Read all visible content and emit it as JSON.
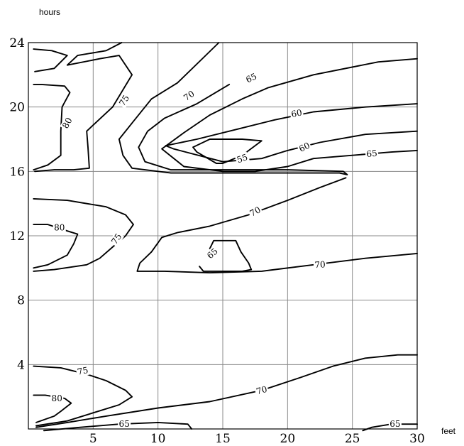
{
  "chart_data": {
    "type": "contour",
    "title": "",
    "xlabel": "feet",
    "ylabel": "hours",
    "xlim": [
      0,
      30
    ],
    "ylim": [
      0,
      24
    ],
    "x_ticks": [
      5,
      10,
      15,
      20,
      25,
      30
    ],
    "y_ticks": [
      4,
      8,
      12,
      16,
      20,
      24
    ],
    "grid": true,
    "contours": [
      {
        "level": "80",
        "points": [
          [
            0.5,
            22.2
          ],
          [
            2.0,
            22.4
          ],
          [
            3.0,
            23.2
          ],
          [
            1.8,
            23.5
          ],
          [
            0.4,
            23.6
          ]
        ]
      },
      {
        "level": "80",
        "points": [
          [
            0.4,
            16.1
          ],
          [
            1.5,
            16.4
          ],
          [
            2.5,
            17.0
          ],
          [
            2.5,
            18.5
          ],
          [
            2.6,
            20.0
          ],
          [
            3.2,
            20.9
          ],
          [
            2.8,
            21.3
          ],
          [
            1.0,
            21.4
          ],
          [
            0.4,
            21.4
          ]
        ]
      },
      {
        "level": "75",
        "points": [
          [
            0.5,
            16.0
          ],
          [
            2.0,
            16.1
          ],
          [
            3.5,
            16.1
          ],
          [
            4.7,
            16.2
          ],
          [
            4.6,
            17.5
          ],
          [
            4.5,
            18.5
          ],
          [
            6.5,
            20.0
          ],
          [
            8.0,
            22.0
          ],
          [
            7.0,
            23.2
          ],
          [
            5.5,
            23.0
          ],
          [
            3.0,
            22.6
          ],
          [
            3.8,
            23.2
          ],
          [
            6.0,
            23.5
          ],
          [
            7.2,
            24.0
          ]
        ]
      },
      {
        "level": "70",
        "points": [
          [
            14.7,
            24.0
          ],
          [
            11.5,
            21.5
          ],
          [
            9.5,
            20.5
          ],
          [
            8.0,
            19.0
          ],
          [
            7.0,
            18.0
          ],
          [
            7.3,
            17.0
          ],
          [
            8.0,
            16.2
          ],
          [
            11.0,
            15.9
          ],
          [
            14.0,
            15.9
          ],
          [
            17.0,
            15.9
          ],
          [
            20.0,
            15.9
          ],
          [
            24.0,
            15.9
          ],
          [
            24.6,
            15.8
          ],
          [
            24.3,
            16.0
          ],
          [
            20.0,
            16.1
          ],
          [
            15.0,
            16.1
          ],
          [
            11.0,
            16.1
          ],
          [
            9.0,
            16.6
          ],
          [
            8.5,
            17.5
          ],
          [
            9.2,
            18.5
          ],
          [
            10.5,
            19.3
          ],
          [
            13.0,
            20.2
          ],
          [
            15.5,
            21.4
          ]
        ]
      },
      {
        "level": "65",
        "points": [
          [
            30.0,
            23.0
          ],
          [
            27.0,
            22.8
          ],
          [
            22.0,
            22.0
          ],
          [
            18.5,
            21.2
          ],
          [
            16.5,
            20.5
          ],
          [
            14.0,
            19.5
          ],
          [
            12.0,
            18.4
          ],
          [
            10.3,
            17.4
          ],
          [
            12.0,
            16.3
          ],
          [
            15.0,
            16.0
          ],
          [
            17.5,
            16.0
          ],
          [
            20.0,
            16.3
          ],
          [
            22.0,
            16.8
          ],
          [
            25.0,
            17.0
          ],
          [
            28.0,
            17.2
          ],
          [
            30.0,
            17.3
          ]
        ]
      },
      {
        "level": "60",
        "points": [
          [
            30.0,
            20.2
          ],
          [
            26.0,
            20.0
          ],
          [
            22.0,
            19.7
          ],
          [
            19.0,
            19.2
          ],
          [
            16.0,
            18.6
          ],
          [
            13.0,
            18.0
          ],
          [
            10.6,
            17.6
          ],
          [
            11.2,
            17.4
          ],
          [
            15.0,
            16.6
          ],
          [
            18.0,
            16.8
          ],
          [
            20.0,
            17.3
          ],
          [
            22.5,
            17.8
          ],
          [
            26.0,
            18.3
          ],
          [
            30.0,
            18.5
          ]
        ]
      },
      {
        "level": "55",
        "points": [
          [
            12.7,
            17.5
          ],
          [
            14.0,
            18.0
          ],
          [
            16.5,
            18.0
          ],
          [
            18.0,
            17.9
          ],
          [
            16.5,
            17.0
          ],
          [
            15.0,
            16.5
          ],
          [
            14.5,
            16.5
          ],
          [
            13.0,
            17.2
          ],
          [
            12.7,
            17.5
          ]
        ]
      },
      {
        "level": "80",
        "points": [
          [
            0.4,
            12.7
          ],
          [
            1.5,
            12.7
          ],
          [
            3.0,
            12.3
          ],
          [
            3.8,
            12.1
          ],
          [
            3.5,
            11.5
          ],
          [
            3.0,
            10.8
          ],
          [
            1.5,
            10.2
          ],
          [
            0.4,
            10.0
          ]
        ]
      },
      {
        "level": "75",
        "points": [
          [
            0.4,
            14.3
          ],
          [
            3.0,
            14.2
          ],
          [
            6.0,
            13.8
          ],
          [
            7.5,
            13.3
          ],
          [
            8.1,
            12.7
          ],
          [
            7.5,
            12.0
          ],
          [
            6.5,
            11.3
          ],
          [
            5.5,
            10.6
          ],
          [
            4.5,
            10.2
          ],
          [
            2.0,
            9.9
          ],
          [
            0.4,
            9.8
          ]
        ]
      },
      {
        "level": "70",
        "points": [
          [
            30.0,
            10.9
          ],
          [
            26.0,
            10.6
          ],
          [
            22.0,
            10.2
          ],
          [
            18.0,
            9.8
          ],
          [
            14.0,
            9.7
          ],
          [
            10.5,
            9.8
          ],
          [
            8.4,
            9.8
          ],
          [
            8.6,
            10.3
          ],
          [
            9.5,
            11.0
          ],
          [
            10.3,
            11.9
          ],
          [
            11.5,
            12.2
          ],
          [
            14.0,
            12.6
          ],
          [
            17.0,
            13.3
          ],
          [
            20.0,
            14.2
          ],
          [
            22.5,
            15.0
          ],
          [
            24.5,
            15.6
          ]
        ]
      },
      {
        "level": "65",
        "points": [
          [
            14.0,
            11.2
          ],
          [
            14.3,
            11.7
          ],
          [
            16.0,
            11.7
          ],
          [
            16.4,
            11.0
          ],
          [
            17.0,
            10.3
          ],
          [
            17.2,
            9.9
          ],
          [
            16.5,
            9.8
          ],
          [
            15.0,
            9.8
          ],
          [
            13.5,
            9.8
          ],
          [
            13.2,
            10.1
          ]
        ]
      },
      {
        "level": "80",
        "points": [
          [
            0.4,
            2.1
          ],
          [
            1.3,
            2.1
          ],
          [
            2.8,
            1.9
          ],
          [
            3.3,
            1.6
          ],
          [
            2.5,
            1.1
          ],
          [
            2.0,
            0.8
          ],
          [
            0.6,
            0.4
          ]
        ]
      },
      {
        "level": "75",
        "points": [
          [
            0.4,
            3.9
          ],
          [
            2.5,
            3.8
          ],
          [
            4.5,
            3.4
          ],
          [
            6.0,
            3.0
          ],
          [
            7.5,
            2.4
          ],
          [
            8.0,
            2.0
          ],
          [
            7.0,
            1.5
          ],
          [
            5.0,
            1.0
          ],
          [
            3.0,
            0.5
          ],
          [
            0.6,
            0.2
          ]
        ]
      },
      {
        "level": "70",
        "points": [
          [
            0.6,
            0.1
          ],
          [
            3.0,
            0.4
          ],
          [
            6.0,
            0.8
          ],
          [
            10.0,
            1.3
          ],
          [
            14.0,
            1.7
          ],
          [
            18.0,
            2.4
          ],
          [
            21.0,
            3.2
          ],
          [
            23.5,
            3.9
          ],
          [
            26.0,
            4.4
          ],
          [
            28.5,
            4.6
          ],
          [
            30.0,
            4.6
          ]
        ]
      },
      {
        "level": "65",
        "points": [
          [
            1.2,
            -0.1
          ],
          [
            4.0,
            0.1
          ],
          [
            7.0,
            0.3
          ],
          [
            10.0,
            0.4
          ],
          [
            12.3,
            0.3
          ],
          [
            12.6,
            0.0
          ]
        ]
      },
      {
        "level": "65",
        "points": [
          [
            25.8,
            -0.1
          ],
          [
            26.5,
            0.1
          ],
          [
            28.0,
            0.3
          ],
          [
            30.0,
            0.3
          ]
        ]
      }
    ],
    "labels": [
      {
        "text": "80",
        "x": 3.0,
        "y": 19.0,
        "angle": -62
      },
      {
        "text": "75",
        "x": 7.4,
        "y": 20.4,
        "angle": -57
      },
      {
        "text": "70",
        "x": 12.4,
        "y": 20.7,
        "angle": -35
      },
      {
        "text": "65",
        "x": 17.2,
        "y": 21.8,
        "angle": -25
      },
      {
        "text": "60",
        "x": 20.7,
        "y": 19.6,
        "angle": -10
      },
      {
        "text": "60",
        "x": 21.3,
        "y": 17.5,
        "angle": -25
      },
      {
        "text": "65",
        "x": 26.5,
        "y": 17.1,
        "angle": -6
      },
      {
        "text": "55",
        "x": 16.5,
        "y": 16.8,
        "angle": -20
      },
      {
        "text": "80",
        "x": 2.4,
        "y": 12.5,
        "angle": 0
      },
      {
        "text": "75",
        "x": 6.8,
        "y": 11.8,
        "angle": -55
      },
      {
        "text": "70",
        "x": 17.5,
        "y": 13.5,
        "angle": -28
      },
      {
        "text": "65",
        "x": 14.2,
        "y": 10.9,
        "angle": -42
      },
      {
        "text": "70",
        "x": 22.5,
        "y": 10.2,
        "angle": -3
      },
      {
        "text": "75",
        "x": 4.2,
        "y": 3.6,
        "angle": -12
      },
      {
        "text": "80",
        "x": 2.2,
        "y": 1.9,
        "angle": 0
      },
      {
        "text": "70",
        "x": 18.0,
        "y": 2.4,
        "angle": -15
      },
      {
        "text": "65",
        "x": 7.4,
        "y": 0.3,
        "angle": 0
      },
      {
        "text": "65",
        "x": 28.3,
        "y": 0.3,
        "angle": 0
      }
    ]
  }
}
